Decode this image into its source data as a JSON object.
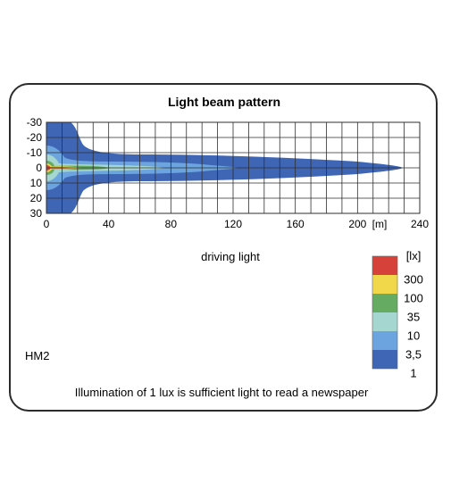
{
  "chart_data": {
    "type": "heatmap",
    "title": "Light beam pattern",
    "subtitle": "driving light",
    "model": "HM2",
    "footnote": "Illumination of 1 lux is sufficient light to read a newspaper",
    "x_unit": "[m]",
    "x_ticks": [
      "0",
      "40",
      "80",
      "120",
      "160",
      "200",
      "240"
    ],
    "y_ticks": [
      "-30",
      "-20",
      "-10",
      "0",
      "10",
      "20",
      "30"
    ],
    "xlim": [
      0,
      240
    ],
    "ylim": [
      -30,
      30
    ],
    "legend_title": "[lx]",
    "grid": true,
    "levels": [
      {
        "label": "300",
        "color": "#d6413a",
        "reach_m": 20
      },
      {
        "label": "100",
        "color": "#f1d84a",
        "reach_m": 24
      },
      {
        "label": "35",
        "color": "#66ab62",
        "reach_m": 40
      },
      {
        "label": "10",
        "color": "#a6d6d0",
        "reach_m": 78
      },
      {
        "label": "3,5",
        "color": "#6ca4df",
        "reach_m": 125
      },
      {
        "label": "1",
        "color": "#3f65b5",
        "reach_m": 230
      }
    ]
  }
}
